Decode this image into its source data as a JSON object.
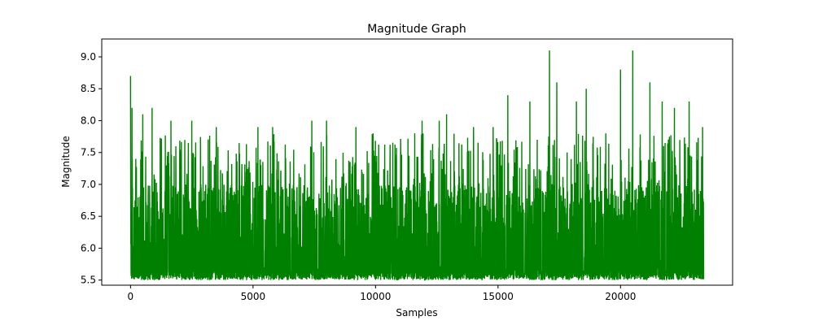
{
  "chart_data": {
    "type": "line",
    "title": "Magnitude Graph",
    "xlabel": "Samples",
    "ylabel": "Magnitude",
    "xlim": [
      -1175,
      24575
    ],
    "ylim": [
      5.42,
      9.28
    ],
    "x_ticks": [
      0,
      5000,
      10000,
      15000,
      20000
    ],
    "x_tick_labels": [
      "0",
      "5000",
      "10000",
      "15000",
      "20000"
    ],
    "y_ticks": [
      5.5,
      6.0,
      6.5,
      7.0,
      7.5,
      8.0,
      8.5,
      9.0
    ],
    "y_tick_labels": [
      "5.5",
      "6.0",
      "6.5",
      "7.0",
      "7.5",
      "8.0",
      "8.5",
      "9.0"
    ],
    "grid": false,
    "legend": "none",
    "series": [
      {
        "color": "#008000",
        "sample_count": 23400,
        "baseline": 5.5,
        "typical_max": 7.0,
        "peaks": [
          {
            "x": 0,
            "y": 8.7
          },
          {
            "x": 60,
            "y": 8.2
          },
          {
            "x": 500,
            "y": 8.1
          },
          {
            "x": 880,
            "y": 8.2
          },
          {
            "x": 1650,
            "y": 8.0
          },
          {
            "x": 2500,
            "y": 8.0
          },
          {
            "x": 3500,
            "y": 7.9
          },
          {
            "x": 5200,
            "y": 7.9
          },
          {
            "x": 5800,
            "y": 7.9
          },
          {
            "x": 7400,
            "y": 8.0
          },
          {
            "x": 8000,
            "y": 8.0
          },
          {
            "x": 9200,
            "y": 7.9
          },
          {
            "x": 9900,
            "y": 7.8
          },
          {
            "x": 11600,
            "y": 7.8
          },
          {
            "x": 11900,
            "y": 8.0
          },
          {
            "x": 12600,
            "y": 8.0
          },
          {
            "x": 12900,
            "y": 8.1
          },
          {
            "x": 14000,
            "y": 7.9
          },
          {
            "x": 14800,
            "y": 7.9
          },
          {
            "x": 15400,
            "y": 8.4
          },
          {
            "x": 16300,
            "y": 8.3
          },
          {
            "x": 16600,
            "y": 7.7
          },
          {
            "x": 17100,
            "y": 9.1
          },
          {
            "x": 17400,
            "y": 8.6
          },
          {
            "x": 18200,
            "y": 8.3
          },
          {
            "x": 18600,
            "y": 8.5
          },
          {
            "x": 19400,
            "y": 7.8
          },
          {
            "x": 20000,
            "y": 8.8
          },
          {
            "x": 20500,
            "y": 9.1
          },
          {
            "x": 21200,
            "y": 8.6
          },
          {
            "x": 21700,
            "y": 8.3
          },
          {
            "x": 22200,
            "y": 8.2
          },
          {
            "x": 22800,
            "y": 8.3
          },
          {
            "x": 23350,
            "y": 7.9
          }
        ]
      }
    ]
  }
}
